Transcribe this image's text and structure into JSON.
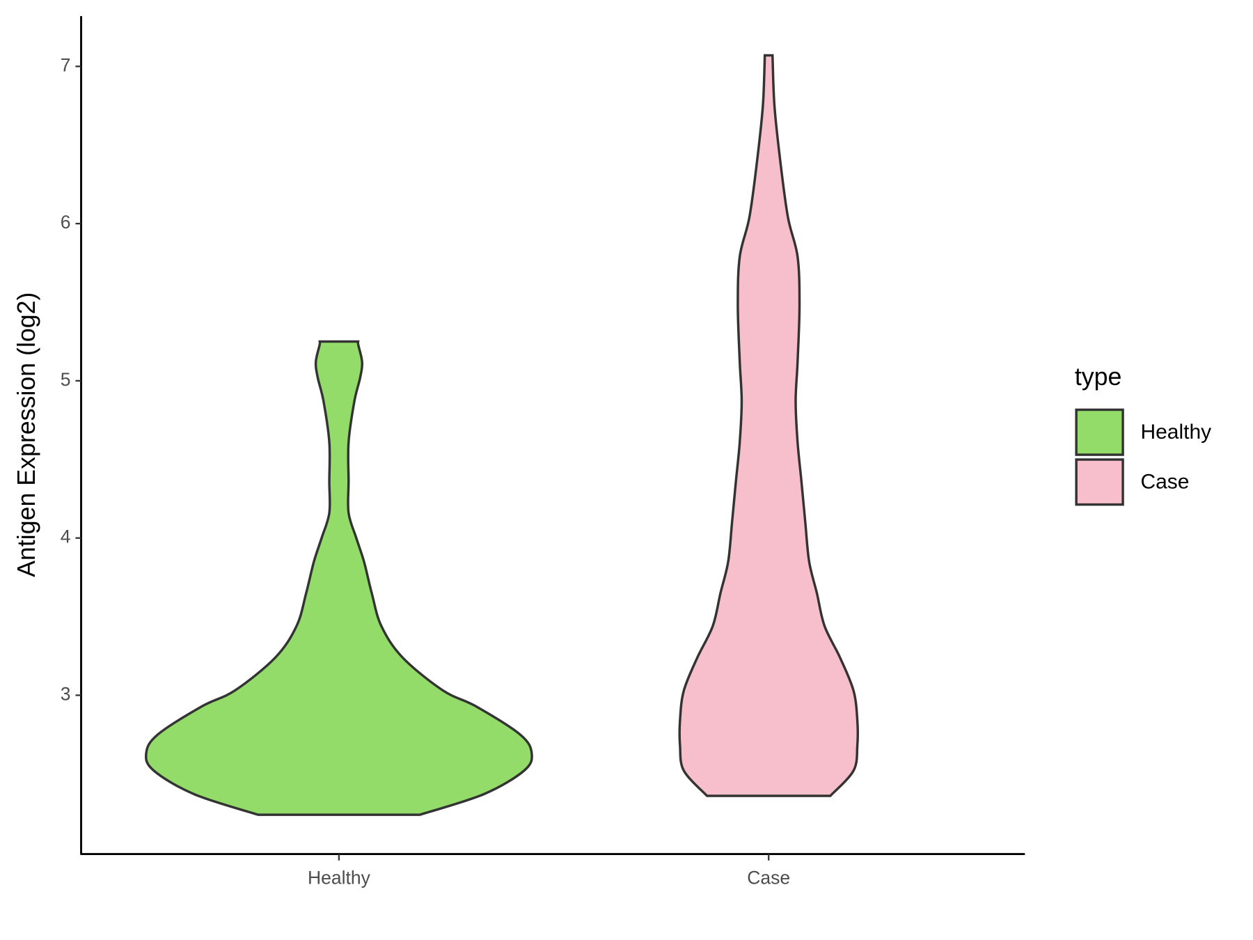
{
  "chart_data": {
    "type": "violin",
    "y_label": "Antigen Expression (log2)",
    "categories": [
      "Healthy",
      "Case"
    ],
    "legend_title": "type",
    "legend_position": "right",
    "ylim": [
      1.99,
      7.32
    ],
    "yticks": [
      3,
      4,
      5,
      6,
      7
    ],
    "series": [
      {
        "name": "Healthy",
        "color": "#93dc6a",
        "y": [
          2.24,
          2.37,
          2.52,
          2.63,
          2.75,
          2.93,
          3.03,
          3.24,
          3.44,
          3.65,
          3.85,
          4.0,
          4.16,
          4.36,
          4.61,
          4.87,
          5.02,
          5.12,
          5.23,
          5.25
        ],
        "density": [
          0.42,
          0.75,
          0.96,
          1.0,
          0.94,
          0.71,
          0.54,
          0.33,
          0.22,
          0.17,
          0.13,
          0.09,
          0.05,
          0.05,
          0.05,
          0.08,
          0.11,
          0.12,
          0.1,
          0.1
        ]
      },
      {
        "name": "Case",
        "color": "#f7bfcb",
        "y": [
          2.36,
          2.52,
          2.68,
          2.84,
          3.03,
          3.24,
          3.44,
          3.65,
          3.85,
          4.1,
          4.36,
          4.61,
          4.87,
          5.12,
          5.48,
          5.79,
          6.04,
          6.4,
          6.75,
          7.07
        ],
        "density": [
          0.32,
          0.44,
          0.46,
          0.46,
          0.44,
          0.37,
          0.29,
          0.25,
          0.21,
          0.19,
          0.17,
          0.15,
          0.14,
          0.15,
          0.16,
          0.15,
          0.1,
          0.06,
          0.03,
          0.02
        ]
      }
    ]
  }
}
